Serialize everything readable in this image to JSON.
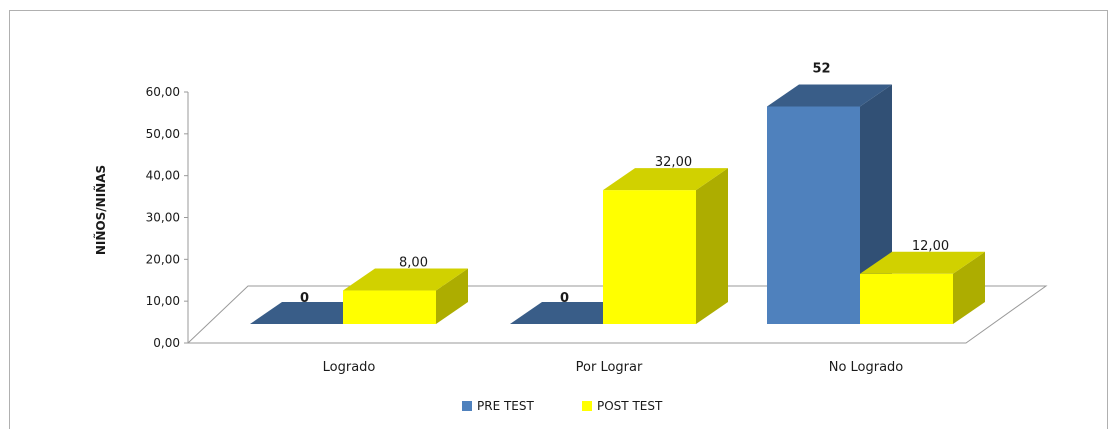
{
  "chart_data": {
    "type": "bar",
    "title": "",
    "xlabel": "",
    "ylabel": "NIÑOS/NIÑAS",
    "categories": [
      "Logrado",
      "Por Lograr",
      "No Logrado"
    ],
    "ylim": [
      0,
      60
    ],
    "yticks": [
      "0,00",
      "10,00",
      "20,00",
      "30,00",
      "40,00",
      "50,00",
      "60,00"
    ],
    "series": [
      {
        "name": "PRE TEST",
        "color": "#4f81bd",
        "values": [
          0,
          0,
          52
        ],
        "labels": [
          "0",
          "0",
          "52"
        ]
      },
      {
        "name": "POST TEST",
        "color": "#ffff00",
        "values": [
          8,
          32,
          12
        ],
        "labels": [
          "8,00",
          "32,00",
          "12,00"
        ]
      }
    ],
    "legend_position": "bottom",
    "style": "3d-clustered-column"
  }
}
